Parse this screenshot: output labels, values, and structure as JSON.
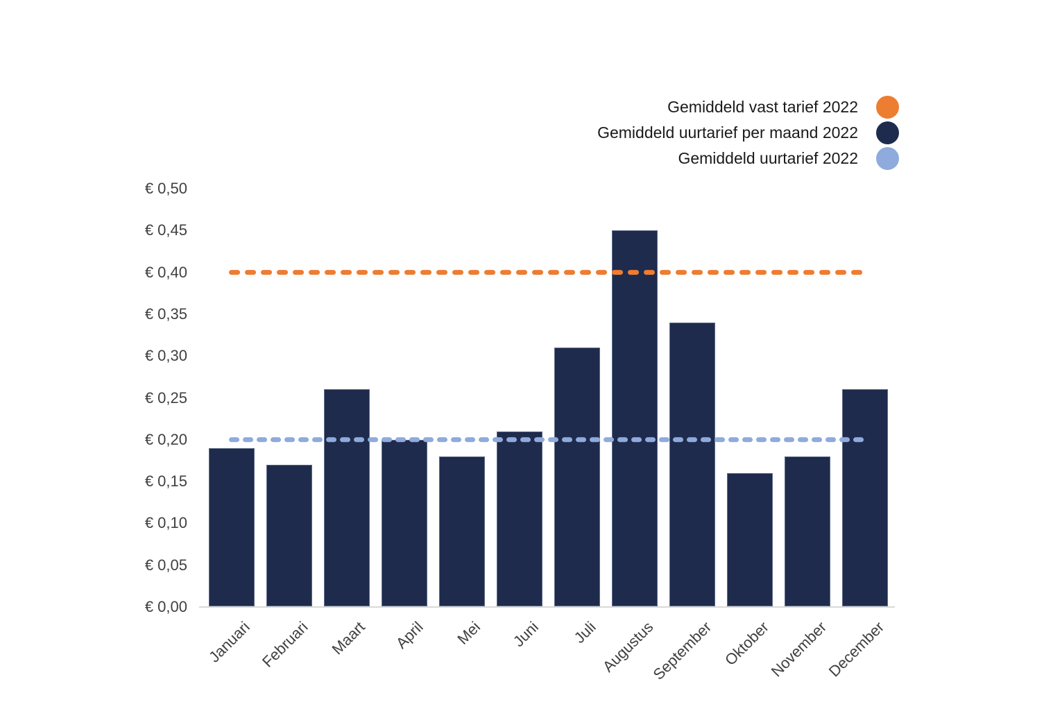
{
  "chart_data": {
    "type": "bar",
    "title": "",
    "xlabel": "",
    "ylabel": "",
    "currency": "EUR",
    "categories": [
      "Januari",
      "Februari",
      "Maart",
      "April",
      "Mei",
      "Juni",
      "Juli",
      "Augustus",
      "September",
      "Oktober",
      "November",
      "December"
    ],
    "series": [
      {
        "name": "Gemiddeld uurtarief per maand 2022",
        "type": "bar",
        "color": "#1e2b4d",
        "values": [
          0.19,
          0.17,
          0.26,
          0.2,
          0.18,
          0.21,
          0.31,
          0.45,
          0.34,
          0.16,
          0.18,
          0.26
        ]
      },
      {
        "name": "Gemiddeld vast tarief 2022",
        "type": "hline",
        "style": "dashed",
        "color": "#ed7d31",
        "value": 0.4
      },
      {
        "name": "Gemiddeld uurtarief 2022",
        "type": "hline",
        "style": "dashed",
        "color": "#8faadc",
        "value": 0.2
      }
    ],
    "ylim": [
      0,
      0.5
    ],
    "ytick_step": 0.05,
    "yticklabels": [
      "€ 0,00",
      "€ 0,05",
      "€ 0,10",
      "€ 0,15",
      "€ 0,20",
      "€ 0,25",
      "€ 0,30",
      "€ 0,35",
      "€ 0,40",
      "€ 0,45",
      "€ 0,50"
    ],
    "grid": false,
    "legend_position": "top-right"
  },
  "legend": {
    "items": [
      {
        "label": "Gemiddeld vast tarief 2022",
        "color": "#ed7d31"
      },
      {
        "label": "Gemiddeld uurtarief per maand 2022",
        "color": "#1e2b4d"
      },
      {
        "label": "Gemiddeld uurtarief 2022",
        "color": "#8faadc"
      }
    ]
  },
  "colors": {
    "bar_fill": "#1e2b4d",
    "vast_tarief_line": "#ed7d31",
    "uurtarief_line": "#8faadc",
    "axis_line": "#d9d9d9",
    "tick_text": "#404040"
  }
}
